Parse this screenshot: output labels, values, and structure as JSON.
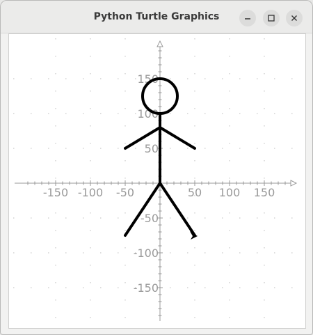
{
  "window": {
    "title": "Python Turtle Graphics",
    "buttons": [
      {
        "name": "minimize",
        "icon": "minimize-icon"
      },
      {
        "name": "maximize",
        "icon": "maximize-icon"
      },
      {
        "name": "close",
        "icon": "close-icon"
      }
    ]
  },
  "canvas": {
    "background": "#ffffff",
    "axis_color": "#999999",
    "figure_color": "#000000",
    "x_ticks": [
      "-150",
      "-100",
      "-50",
      "50",
      "100",
      "150"
    ],
    "y_ticks": [
      "150",
      "100",
      "50",
      "-50",
      "-100",
      "-150"
    ],
    "tick_values": [
      -150,
      -100,
      -50,
      50,
      100,
      150
    ],
    "figure": {
      "head": {
        "center": [
          0,
          125
        ],
        "radius": 25
      },
      "neck_to_hip": [
        [
          0,
          100
        ],
        [
          0,
          0
        ]
      ],
      "left_arm": [
        [
          0,
          80
        ],
        [
          -50,
          50
        ]
      ],
      "right_arm": [
        [
          0,
          80
        ],
        [
          50,
          50
        ]
      ],
      "left_leg": [
        [
          0,
          0
        ],
        [
          -50,
          -75
        ]
      ],
      "right_leg": [
        [
          0,
          0
        ],
        [
          50,
          -75
        ]
      ],
      "turtle_heading": "arrow-icon"
    }
  }
}
